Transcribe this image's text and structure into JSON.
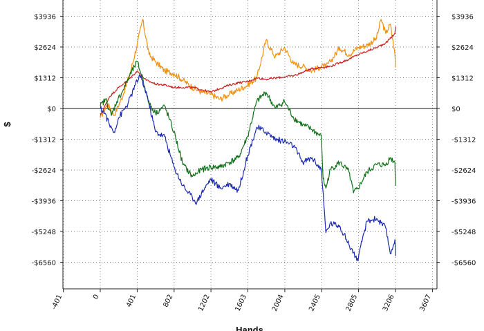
{
  "chart_data": {
    "type": "line",
    "xlabel": "Hands",
    "ylabel": "$",
    "xlim": [
      -401,
      3607
    ],
    "ylim": [
      -7800,
      4500
    ],
    "x_ticks": [
      -401,
      0,
      401,
      802,
      1202,
      1603,
      2004,
      2405,
      2805,
      3206,
      3607
    ],
    "x_tick_labels": [
      "-401",
      "0",
      "401",
      "802",
      "1202",
      "1603",
      "2004",
      "2405",
      "2805",
      "3206",
      "3607"
    ],
    "y_ticks": [
      3936,
      2624,
      1312,
      0,
      -1312,
      -2624,
      -3936,
      -5248,
      -6560
    ],
    "y_tick_labels": [
      "$3936",
      "$2624",
      "$1312",
      "$0",
      "-$1312",
      "-$2624",
      "-$3936",
      "-$5248",
      "-$6560"
    ],
    "grid": true,
    "series": [
      {
        "color": "#f0900c",
        "x": [
          0,
          80,
          150,
          250,
          330,
          400,
          460,
          530,
          600,
          700,
          800,
          900,
          1000,
          1100,
          1200,
          1300,
          1400,
          1500,
          1600,
          1700,
          1800,
          1900,
          2000,
          2100,
          2200,
          2300,
          2400,
          2450,
          2500,
          2600,
          2700,
          2800,
          2900,
          3000,
          3050,
          3100,
          3150,
          3200,
          3206
        ],
        "y": [
          -400,
          200,
          -300,
          600,
          1600,
          2700,
          3800,
          2300,
          2000,
          1600,
          1500,
          1200,
          900,
          700,
          600,
          400,
          600,
          800,
          1000,
          1300,
          2900,
          2200,
          2600,
          1900,
          1800,
          1600,
          1800,
          1800,
          2000,
          2600,
          2300,
          2600,
          2700,
          3000,
          3800,
          3200,
          3600,
          2300,
          1800
        ]
      },
      {
        "color": "#cc1e1e",
        "x": [
          0,
          100,
          200,
          300,
          400,
          500,
          600,
          700,
          800,
          900,
          1000,
          1100,
          1200,
          1300,
          1400,
          1500,
          1600,
          1700,
          1800,
          1900,
          2000,
          2100,
          2200,
          2300,
          2400,
          2500,
          2600,
          2700,
          2800,
          2900,
          3000,
          3100,
          3200,
          3206
        ],
        "y": [
          -300,
          500,
          900,
          1200,
          1600,
          1200,
          1050,
          1000,
          900,
          900,
          900,
          800,
          700,
          850,
          1000,
          1100,
          1150,
          1300,
          1250,
          1300,
          1350,
          1400,
          1550,
          1700,
          1750,
          1800,
          1950,
          2100,
          2300,
          2450,
          2600,
          2800,
          3200,
          3500
        ]
      },
      {
        "color": "#13701a",
        "x": [
          0,
          60,
          120,
          180,
          250,
          320,
          400,
          460,
          520,
          600,
          700,
          800,
          900,
          1000,
          1100,
          1200,
          1300,
          1400,
          1500,
          1600,
          1700,
          1800,
          1900,
          2000,
          2100,
          2200,
          2300,
          2400,
          2420,
          2450,
          2500,
          2600,
          2700,
          2750,
          2800,
          2900,
          3000,
          3100,
          3150,
          3200,
          3206
        ],
        "y": [
          100,
          400,
          -300,
          300,
          800,
          1400,
          2000,
          1300,
          300,
          -200,
          100,
          -1000,
          -2400,
          -2900,
          -2600,
          -2500,
          -2500,
          -2300,
          -2100,
          -1200,
          300,
          700,
          0,
          300,
          -400,
          -700,
          -900,
          -1200,
          -3000,
          -3400,
          -2600,
          -2300,
          -2700,
          -3600,
          -3400,
          -2700,
          -2400,
          -2400,
          -2100,
          -2300,
          -3300
        ]
      },
      {
        "color": "#1c2bb0",
        "x": [
          0,
          50,
          100,
          150,
          200,
          300,
          380,
          430,
          500,
          600,
          700,
          800,
          900,
          1000,
          1050,
          1100,
          1200,
          1300,
          1400,
          1500,
          1600,
          1700,
          1800,
          1900,
          2000,
          2100,
          2200,
          2300,
          2400,
          2450,
          2500,
          2600,
          2700,
          2800,
          2850,
          2900,
          3000,
          3100,
          3150,
          3200,
          3206
        ],
        "y": [
          0,
          -200,
          -700,
          -1000,
          -400,
          200,
          1000,
          1400,
          700,
          -1000,
          -1200,
          -2500,
          -3300,
          -3800,
          -4000,
          -3600,
          -3000,
          -3400,
          -3200,
          -3500,
          -2000,
          -800,
          -1000,
          -1300,
          -1400,
          -1600,
          -2300,
          -2100,
          -2600,
          -5300,
          -4900,
          -5000,
          -5800,
          -6500,
          -5500,
          -4800,
          -4700,
          -5100,
          -6200,
          -5600,
          -6300
        ]
      }
    ]
  }
}
